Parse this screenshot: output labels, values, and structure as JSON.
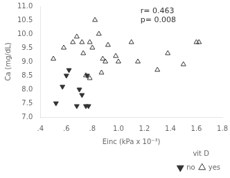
{
  "chart_data": {
    "type": "scatter",
    "xlabel": "Einc (kPa x 10⁻³)",
    "ylabel": "Ca (mg/dL)",
    "xlim": [
      0.4,
      1.8
    ],
    "ylim": [
      7.0,
      11.0
    ],
    "xticks": [
      {
        "value": 0.4,
        "label": ".4"
      },
      {
        "value": 0.6,
        "label": ".6"
      },
      {
        "value": 0.8,
        "label": ".8"
      },
      {
        "value": 1.0,
        "label": "1.0"
      },
      {
        "value": 1.2,
        "label": "1.2"
      },
      {
        "value": 1.4,
        "label": "1.4"
      },
      {
        "value": 1.6,
        "label": "1.6"
      },
      {
        "value": 1.8,
        "label": "1.8"
      }
    ],
    "yticks": [
      {
        "value": 7.0,
        "label": "7.0"
      },
      {
        "value": 7.5,
        "label": "7.5"
      },
      {
        "value": 8.0,
        "label": "8.0"
      },
      {
        "value": 8.5,
        "label": "8.5"
      },
      {
        "value": 9.0,
        "label": "9.0"
      },
      {
        "value": 9.5,
        "label": "9.5"
      },
      {
        "value": 10.0,
        "label": "10.0"
      },
      {
        "value": 10.5,
        "label": "10.5"
      },
      {
        "value": 11.0,
        "label": "11.0"
      }
    ],
    "series": [
      {
        "name": "no",
        "color": "#333333",
        "marker": "triangle-down",
        "x": [
          0.52,
          0.57,
          0.6,
          0.62,
          0.68,
          0.7,
          0.72,
          0.75,
          0.76,
          0.77
        ],
        "values": [
          7.5,
          8.1,
          8.5,
          8.7,
          7.4,
          8.0,
          7.8,
          7.4,
          8.5,
          7.4
        ]
      },
      {
        "name": "yes",
        "color": "#333333",
        "marker": "triangle-open",
        "x": [
          0.5,
          0.58,
          0.65,
          0.68,
          0.72,
          0.73,
          0.75,
          0.78,
          0.78,
          0.8,
          0.82,
          0.85,
          0.87,
          0.88,
          0.9,
          0.92,
          0.98,
          1.0,
          1.1,
          1.15,
          1.3,
          1.38,
          1.5,
          1.6,
          1.62
        ],
        "values": [
          9.1,
          9.5,
          9.7,
          9.9,
          9.7,
          9.3,
          8.5,
          8.4,
          9.7,
          9.5,
          10.5,
          10.0,
          8.6,
          9.1,
          9.0,
          9.6,
          9.2,
          9.0,
          9.7,
          9.0,
          8.7,
          9.3,
          8.9,
          9.7,
          9.7
        ]
      }
    ],
    "legend": "lower right",
    "legend_title": "vit D",
    "annotations": [
      {
        "text": "r= 0.463\np= 0.008",
        "x": 1.17,
        "y": 10.95
      }
    ],
    "grid": false
  }
}
